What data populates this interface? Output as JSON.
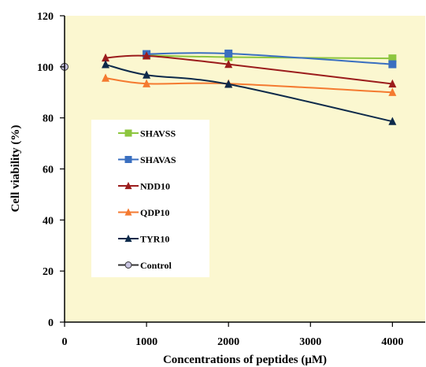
{
  "chart_data": {
    "type": "line",
    "title": "",
    "xlabel": "Concentrations of peptides (μM)",
    "ylabel": "Cell viability (%)",
    "xlim": [
      0,
      4400
    ],
    "ylim": [
      0,
      120
    ],
    "xticks": [
      0,
      1000,
      2000,
      3000,
      4000
    ],
    "yticks": [
      0,
      20,
      40,
      60,
      80,
      100,
      120
    ],
    "grid": false,
    "legend_position": "left-center",
    "background": "#fbf7d0",
    "series": [
      {
        "name": "SHAVSS",
        "color": "#8dc63f",
        "marker": "square",
        "points": [
          [
            1000,
            104.5
          ],
          [
            2000,
            103.8
          ],
          [
            4000,
            103.3
          ]
        ]
      },
      {
        "name": "SHAVAS",
        "color": "#3a6fc0",
        "marker": "square",
        "points": [
          [
            1000,
            105
          ],
          [
            2000,
            105.2
          ],
          [
            4000,
            101
          ]
        ]
      },
      {
        "name": "NDD10",
        "color": "#9b1c1c",
        "marker": "triangle",
        "points": [
          [
            500,
            103.5
          ],
          [
            1000,
            104.3
          ],
          [
            2000,
            101
          ],
          [
            4000,
            93.3
          ]
        ]
      },
      {
        "name": "QDP10",
        "color": "#f47a30",
        "marker": "triangle",
        "points": [
          [
            500,
            95.6
          ],
          [
            1000,
            93.4
          ],
          [
            2000,
            93.4
          ],
          [
            4000,
            90
          ]
        ]
      },
      {
        "name": "TYR10",
        "color": "#0d2a4a",
        "marker": "triangle",
        "points": [
          [
            500,
            100.9
          ],
          [
            1000,
            96.8
          ],
          [
            2000,
            93.2
          ],
          [
            4000,
            78.6
          ]
        ]
      },
      {
        "name": "Control",
        "color": "#333333",
        "marker": "circle",
        "fill": "#c8c4e0",
        "points": [
          [
            0,
            100
          ]
        ]
      }
    ]
  }
}
